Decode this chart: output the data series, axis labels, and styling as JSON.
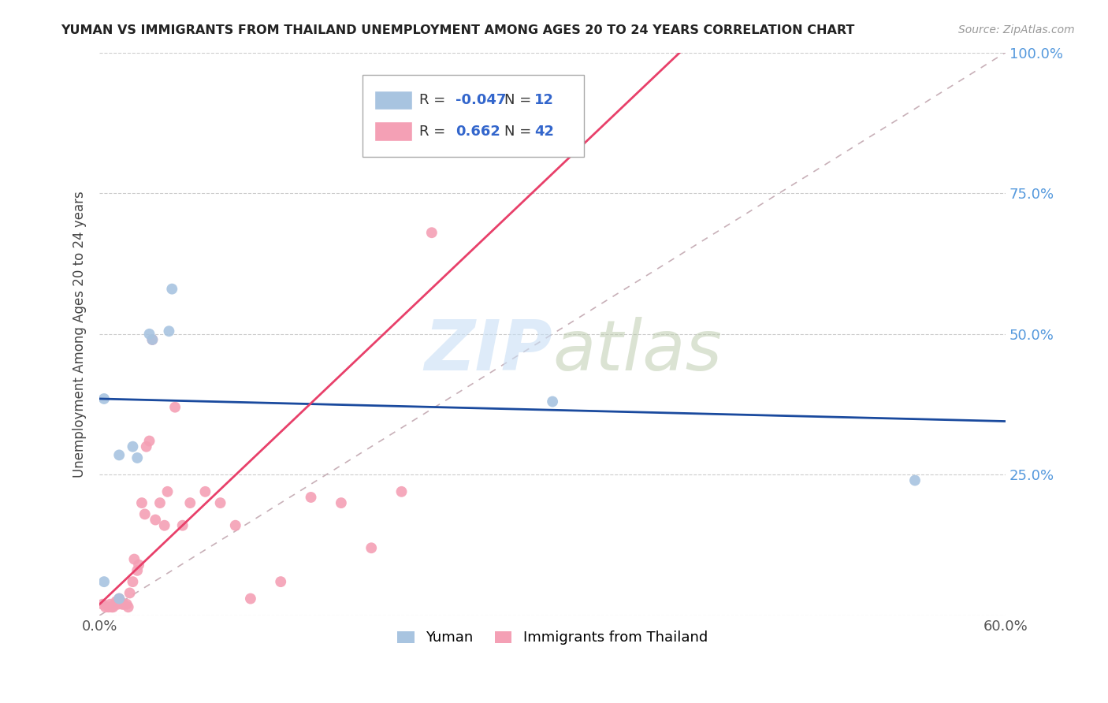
{
  "title": "YUMAN VS IMMIGRANTS FROM THAILAND UNEMPLOYMENT AMONG AGES 20 TO 24 YEARS CORRELATION CHART",
  "source": "Source: ZipAtlas.com",
  "ylabel": "Unemployment Among Ages 20 to 24 years",
  "xlim": [
    0.0,
    0.6
  ],
  "ylim": [
    0.0,
    1.0
  ],
  "xticks": [
    0.0,
    0.1,
    0.2,
    0.3,
    0.4,
    0.5,
    0.6
  ],
  "yticks": [
    0.0,
    0.25,
    0.5,
    0.75,
    1.0
  ],
  "yticklabels_right": [
    "",
    "25.0%",
    "50.0%",
    "75.0%",
    "100.0%"
  ],
  "yuman_color": "#a8c4e0",
  "yuman_line_color": "#1a4a9e",
  "thailand_color": "#f4a0b5",
  "thailand_line_color": "#e8406a",
  "diag_color": "#c8b0b8",
  "yuman_r": -0.047,
  "yuman_n": 12,
  "thailand_r": 0.662,
  "thailand_n": 42,
  "watermark_zip": "ZIP",
  "watermark_atlas": "atlas",
  "legend_label_yuman": "Yuman",
  "legend_label_thailand": "Immigrants from Thailand",
  "yuman_x": [
    0.003,
    0.013,
    0.013,
    0.022,
    0.033,
    0.035,
    0.046,
    0.048,
    0.3,
    0.54,
    0.003,
    0.025
  ],
  "yuman_y": [
    0.385,
    0.285,
    0.03,
    0.3,
    0.5,
    0.49,
    0.505,
    0.58,
    0.38,
    0.24,
    0.06,
    0.28
  ],
  "thailand_x": [
    0.002,
    0.004,
    0.006,
    0.007,
    0.008,
    0.009,
    0.01,
    0.011,
    0.012,
    0.013,
    0.014,
    0.015,
    0.016,
    0.018,
    0.019,
    0.02,
    0.022,
    0.023,
    0.025,
    0.026,
    0.028,
    0.03,
    0.031,
    0.033,
    0.035,
    0.037,
    0.04,
    0.043,
    0.045,
    0.05,
    0.055,
    0.06,
    0.07,
    0.08,
    0.09,
    0.1,
    0.12,
    0.14,
    0.16,
    0.18,
    0.2,
    0.22
  ],
  "thailand_y": [
    0.02,
    0.015,
    0.015,
    0.02,
    0.015,
    0.015,
    0.02,
    0.025,
    0.02,
    0.03,
    0.025,
    0.02,
    0.02,
    0.02,
    0.015,
    0.04,
    0.06,
    0.1,
    0.08,
    0.09,
    0.2,
    0.18,
    0.3,
    0.31,
    0.49,
    0.17,
    0.2,
    0.16,
    0.22,
    0.37,
    0.16,
    0.2,
    0.22,
    0.2,
    0.16,
    0.03,
    0.06,
    0.21,
    0.2,
    0.12,
    0.22,
    0.68
  ],
  "yuman_line_x0": 0.0,
  "yuman_line_x1": 0.6,
  "yuman_line_y0": 0.385,
  "yuman_line_y1": 0.345,
  "thailand_line_x0": 0.0,
  "thailand_line_x1": 0.2,
  "thailand_line_y0": 0.02,
  "thailand_line_y1": 0.53
}
